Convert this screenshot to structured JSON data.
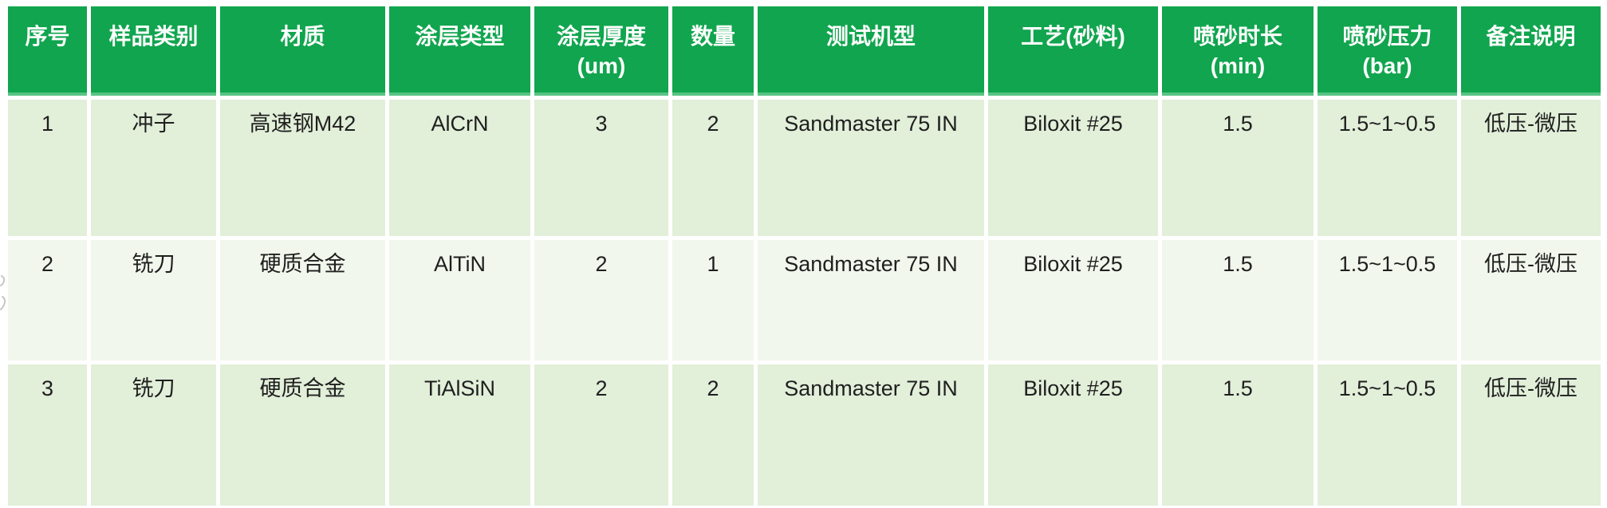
{
  "colors": {
    "header_bg": "#10a54e",
    "header_bottom_edge": "#58c384",
    "header_text": "#fdfdfd",
    "row_odd_bg": "#e2efd9",
    "row_even_bg": "#f1f7ec",
    "body_text": "#1f1f1f",
    "gutter": "#ffffff"
  },
  "table": {
    "columns": [
      {
        "key": "index",
        "label": "序号"
      },
      {
        "key": "sample-type",
        "label": "样品类别"
      },
      {
        "key": "material",
        "label": "材质"
      },
      {
        "key": "coating-type",
        "label": "涂层类型"
      },
      {
        "key": "coating-thickness",
        "label": "涂层厚度\n(um)"
      },
      {
        "key": "quantity",
        "label": "数量"
      },
      {
        "key": "test-machine",
        "label": "测试机型"
      },
      {
        "key": "process-media",
        "label": "工艺(砂料)"
      },
      {
        "key": "blast-duration",
        "label": "喷砂时长\n(min)"
      },
      {
        "key": "blast-pressure",
        "label": "喷砂压力\n(bar)"
      },
      {
        "key": "remarks",
        "label": "备注说明"
      }
    ],
    "rows": [
      [
        "1",
        "冲子",
        "高速钢M42",
        "AlCrN",
        "3",
        "2",
        "Sandmaster 75 IN",
        "Biloxit #25",
        "1.5",
        "1.5~1~0.5",
        "低压-微压"
      ],
      [
        "2",
        "铣刀",
        "硬质合金",
        "AlTiN",
        "2",
        "1",
        "Sandmaster 75 IN",
        "Biloxit #25",
        "1.5",
        "1.5~1~0.5",
        "低压-微压"
      ],
      [
        "3",
        "铣刀",
        "硬质合金",
        "TiAlSiN",
        "2",
        "2",
        "Sandmaster 75 IN",
        "Biloxit #25",
        "1.5",
        "1.5~1~0.5",
        "低压-微压"
      ]
    ]
  }
}
